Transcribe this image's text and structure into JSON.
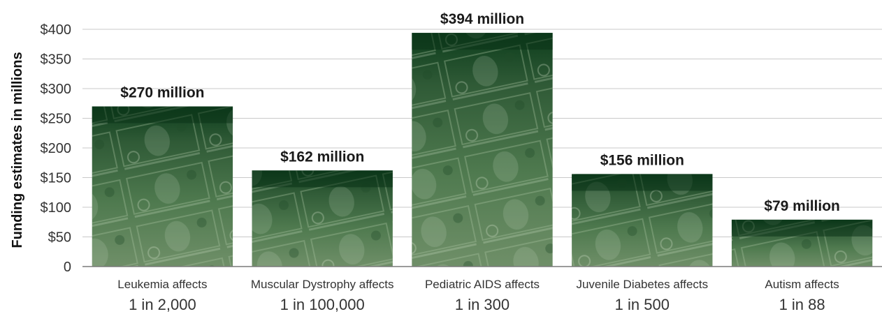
{
  "chart_data": {
    "type": "bar",
    "ylabel": "Funding estimates in millions",
    "ylim": [
      0,
      400
    ],
    "yticks": [
      {
        "value": 0,
        "label": "0"
      },
      {
        "value": 50,
        "label": "$50"
      },
      {
        "value": 100,
        "label": "$100"
      },
      {
        "value": 150,
        "label": "$150"
      },
      {
        "value": 200,
        "label": "$200"
      },
      {
        "value": 250,
        "label": "$250"
      },
      {
        "value": 300,
        "label": "$300"
      },
      {
        "value": 350,
        "label": "$350"
      },
      {
        "value": 400,
        "label": "$400"
      }
    ],
    "grid": true,
    "categories": [
      {
        "line1": "Leukemia affects",
        "line2": "1 in 2,000"
      },
      {
        "line1": "Muscular Dystrophy affects",
        "line2": "1 in 100,000"
      },
      {
        "line1": "Pediatric AIDS affects",
        "line2": "1 in 300"
      },
      {
        "line1": "Juvenile Diabetes affects",
        "line2": "1 in 500"
      },
      {
        "line1": "Autism affects",
        "line2": "1 in 88"
      }
    ],
    "values": [
      270,
      162,
      394,
      156,
      79
    ],
    "data_labels": [
      "$270 million",
      "$162 million",
      "$394 million",
      "$156 million",
      "$79 million"
    ],
    "bar_fill": "money-photo (green US $100 bills)",
    "colors": {
      "bar_top": "#0d3d1c",
      "bar_mid": "#4f7a4f",
      "bar_bottom": "#6f8f68",
      "grid": "#c9c9c9",
      "axis": "#7a7a7a"
    }
  }
}
